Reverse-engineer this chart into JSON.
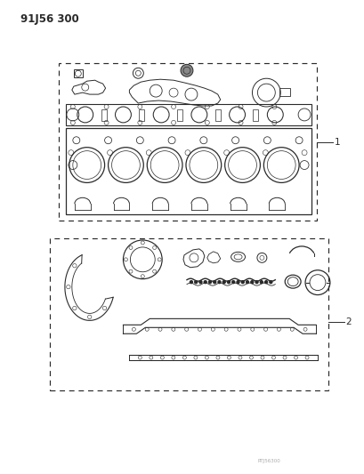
{
  "title": "91J56 300",
  "background_color": "#ffffff",
  "line_color": "#2a2a2a",
  "label1": "1",
  "label2": "2",
  "fig_width": 4.1,
  "fig_height": 5.33,
  "dpi": 100
}
